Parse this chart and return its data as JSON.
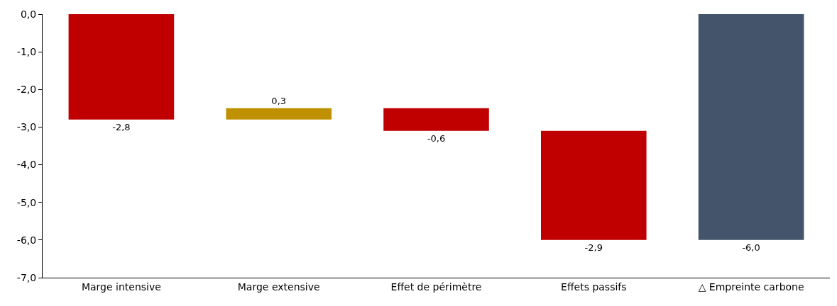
{
  "chart_data": {
    "type": "bar",
    "categories": [
      "Marge intensive",
      "Marge extensive",
      "Effet de périmètre",
      "Effets passifs",
      "△ Empreinte carbone"
    ],
    "values": [
      -2.8,
      0.3,
      -0.6,
      -2.9,
      -6.0
    ],
    "base": [
      0,
      -2.8,
      -2.5,
      -3.1,
      0
    ],
    "colors": [
      "#c00000",
      "#bf9000",
      "#c00000",
      "#c00000",
      "#44546a"
    ],
    "value_labels": [
      "-2,8",
      "0,3",
      "-0,6",
      "-2,9",
      "-6,0"
    ],
    "ylim": [
      -7,
      0
    ],
    "yticks": [
      {
        "value": 0,
        "label": "0,0"
      },
      {
        "value": -1,
        "label": "-1,0"
      },
      {
        "value": -2,
        "label": "-2,0"
      },
      {
        "value": -3,
        "label": "-3,0"
      },
      {
        "value": -4,
        "label": "-4,0"
      },
      {
        "value": -5,
        "label": "-5,0"
      },
      {
        "value": -6,
        "label": "-6,0"
      },
      {
        "value": -7,
        "label": "-7,0"
      }
    ],
    "tick_labels": "xy"
  }
}
